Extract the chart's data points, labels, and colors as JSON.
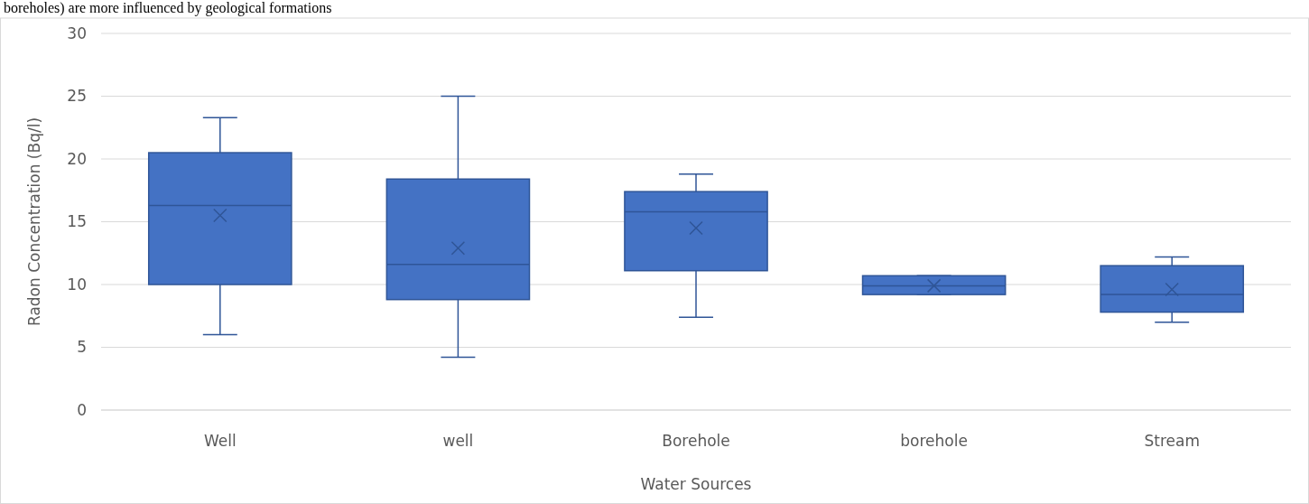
{
  "chart_data": {
    "type": "box",
    "xlabel": "Water Sources",
    "ylabel": "Radon Concentration (Bq/l)",
    "annotations": [
      "boreholes) are more influenced by geological formations"
    ],
    "categories": [
      "Well",
      "well",
      "Borehole",
      "borehole",
      "Stream"
    ],
    "boxes": [
      {
        "low": 6.0,
        "q1": 10.0,
        "median": 16.3,
        "q3": 20.5,
        "high": 23.3,
        "mean": 15.5
      },
      {
        "low": 4.2,
        "q1": 8.8,
        "median": 11.6,
        "q3": 18.4,
        "high": 25.0,
        "mean": 12.9
      },
      {
        "low": 7.4,
        "q1": 11.1,
        "median": 15.8,
        "q3": 17.4,
        "high": 18.8,
        "mean": 14.5
      },
      {
        "low": 9.2,
        "q1": 9.2,
        "median": 9.9,
        "q3": 10.7,
        "high": 10.7,
        "mean": 9.9
      },
      {
        "low": 7.0,
        "q1": 7.8,
        "median": 9.2,
        "q3": 11.5,
        "high": 12.2,
        "mean": 9.6
      }
    ],
    "color": "#4472c4",
    "ylim": [
      0,
      30
    ],
    "yticks": [
      0,
      5,
      10,
      15,
      20,
      25,
      30
    ],
    "grid": "y"
  }
}
